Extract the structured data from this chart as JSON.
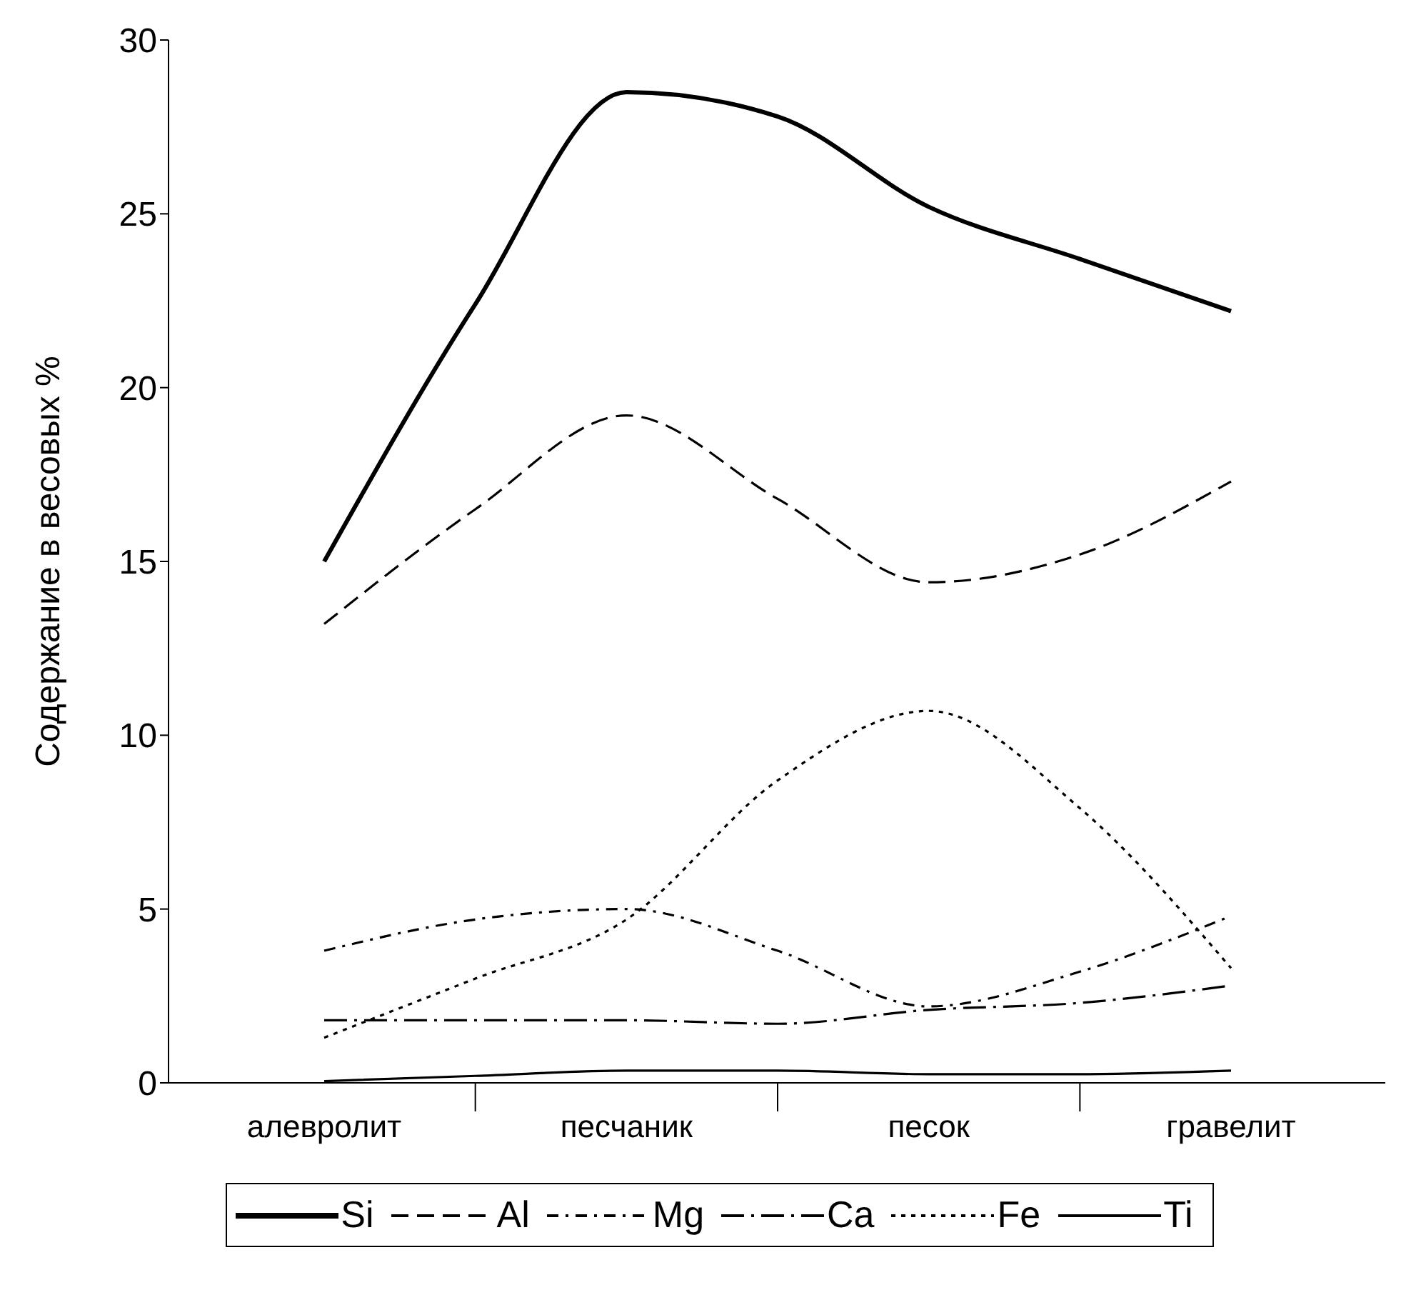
{
  "chart_data": {
    "type": "line",
    "ylabel": "Содержание в весовых %",
    "categories": [
      "алевролит",
      null,
      "песчаник",
      null,
      "песок",
      null,
      "гравелит"
    ],
    "ylim": [
      0,
      30
    ],
    "yticks": [
      0,
      5,
      10,
      15,
      20,
      25,
      30
    ],
    "grid": false,
    "legend": "bottom",
    "marker": "none",
    "series": [
      {
        "name": "Si",
        "color": "#000000",
        "line_style": "solid",
        "values": [
          15.0,
          22.4,
          28.5,
          27.8,
          25.2,
          23.7,
          22.2
        ]
      },
      {
        "name": "Al",
        "color": "#000000",
        "line_style": "dashed",
        "values": [
          13.2,
          16.5,
          19.2,
          16.8,
          14.4,
          15.2,
          17.3
        ]
      },
      {
        "name": "Mg",
        "color": "#000000",
        "line_style": "dashdot",
        "values": [
          3.8,
          4.7,
          5.0,
          3.8,
          2.2,
          3.2,
          4.8
        ]
      },
      {
        "name": "Ca",
        "color": "#000000",
        "line_style": "longdashdot",
        "values": [
          1.8,
          1.8,
          1.8,
          1.7,
          2.1,
          2.3,
          2.8
        ]
      },
      {
        "name": "Fe",
        "color": "#000000",
        "line_style": "dotted",
        "values": [
          1.3,
          3.0,
          4.7,
          8.7,
          10.7,
          7.9,
          3.3
        ]
      },
      {
        "name": "Ti",
        "color": "#000000",
        "line_style": "solid",
        "values": [
          0.05,
          0.2,
          0.35,
          0.35,
          0.25,
          0.25,
          0.35
        ]
      }
    ]
  }
}
